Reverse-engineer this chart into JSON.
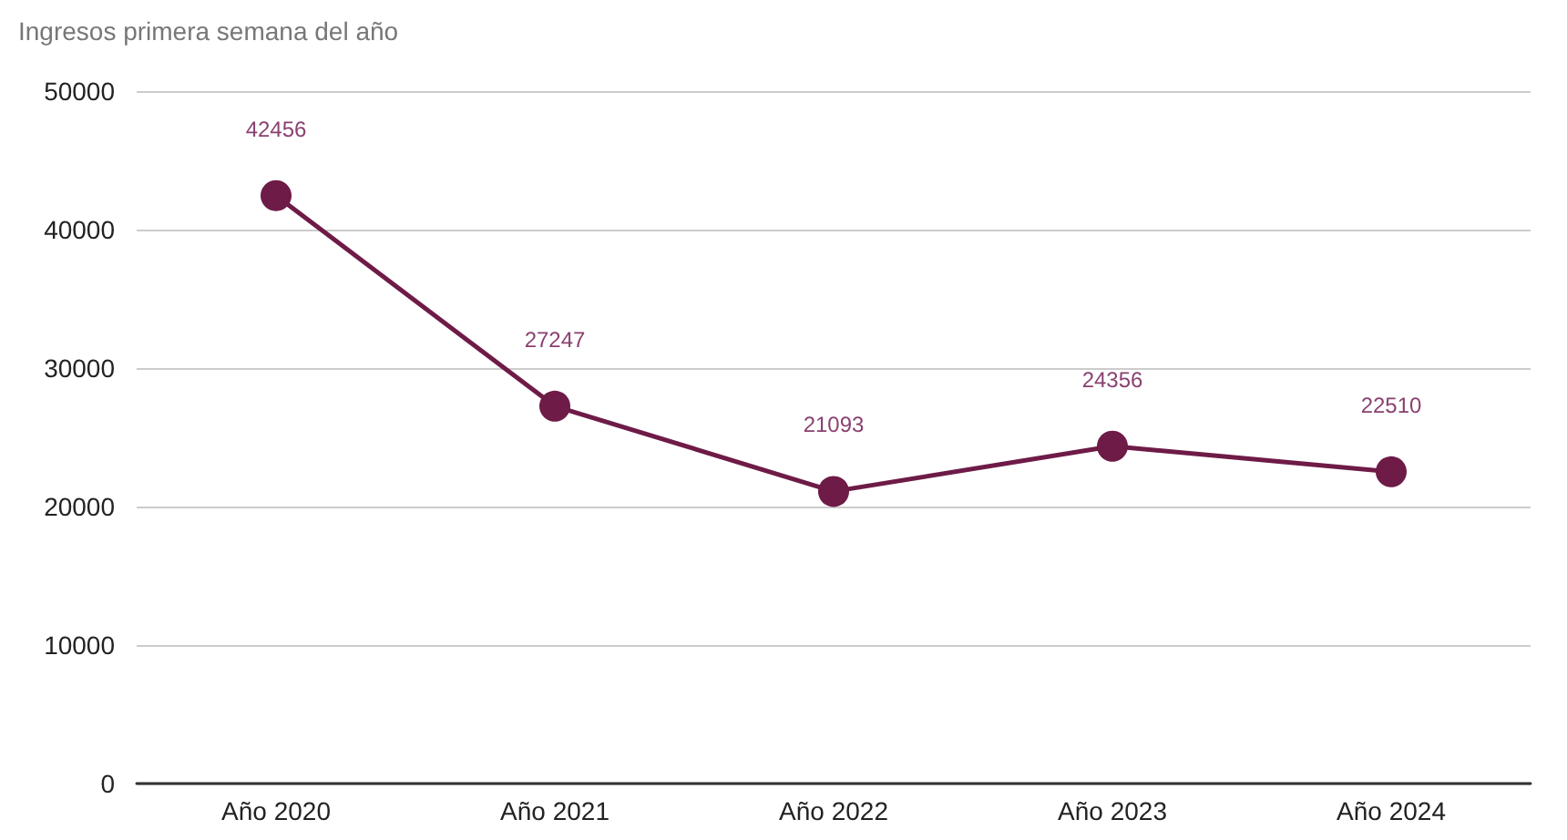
{
  "chart_data": {
    "type": "line",
    "title": "Ingresos primera semana del año",
    "categories": [
      "Año 2020",
      "Año 2021",
      "Año 2022",
      "Año 2023",
      "Año 2024"
    ],
    "series": [
      {
        "color": "#6e1b47",
        "values": [
          42456,
          27247,
          21093,
          24356,
          22510
        ]
      }
    ],
    "ylim": [
      0,
      50000
    ],
    "yticks": [
      0,
      10000,
      20000,
      30000,
      40000,
      50000
    ],
    "grid": "y",
    "marker": "circle",
    "data_labels": true
  }
}
